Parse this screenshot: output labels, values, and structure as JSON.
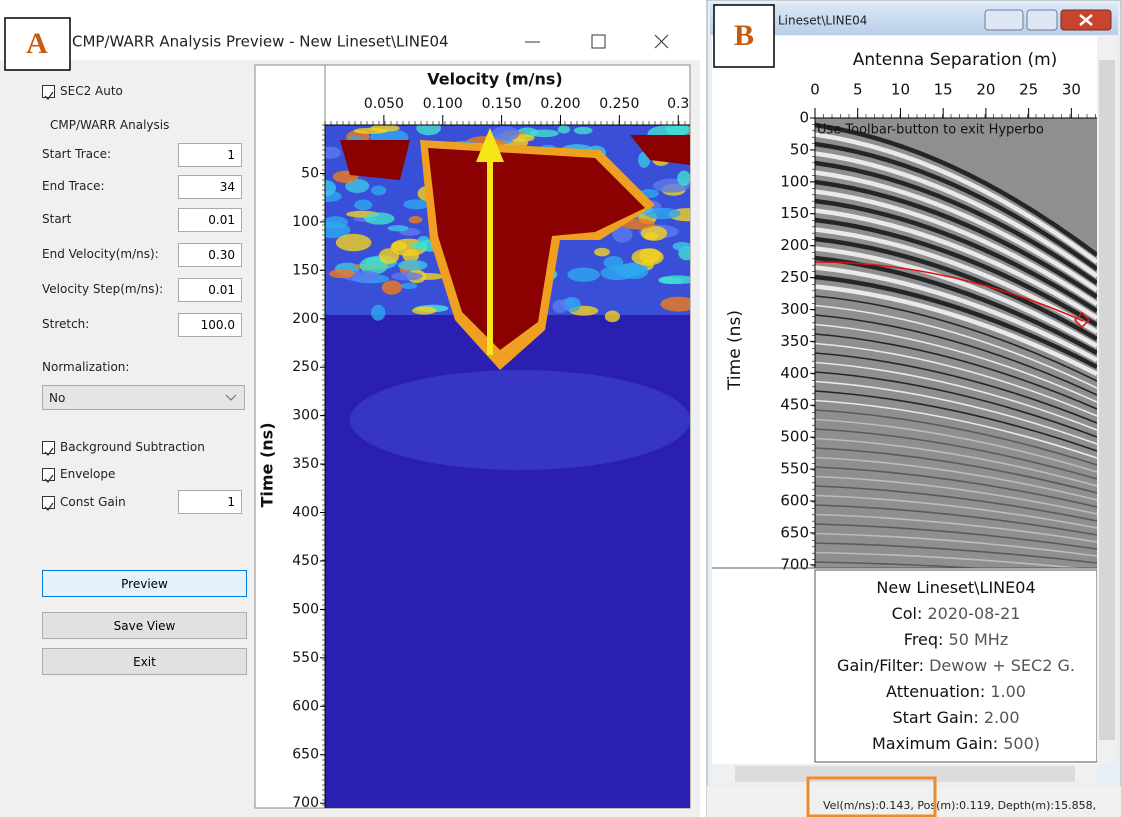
{
  "panel_a": {
    "label": "A",
    "window_title": "CMP/WARR Analysis Preview - New Lineset\\LINE04",
    "sec2_auto": "SEC2 Auto",
    "group_title": "CMP/WARR Analysis",
    "fields": [
      {
        "label": "Start Trace:",
        "value": "1"
      },
      {
        "label": "End Trace:",
        "value": "34"
      },
      {
        "label": "Start",
        "value": "0.01"
      },
      {
        "label": "End Velocity(m/ns):",
        "value": "0.30"
      },
      {
        "label": "Velocity Step(m/ns):",
        "value": "0.01"
      },
      {
        "label": "Stretch:",
        "value": "100.0"
      }
    ],
    "normalization_label": "Normalization:",
    "normalization_value": "No",
    "options": [
      "Background Subtraction",
      "Envelope",
      "Const Gain"
    ],
    "const_gain_value": "1",
    "buttons": [
      "Preview",
      "Save View",
      "Exit"
    ],
    "plot": {
      "x_label": "Velocity (m/ns)",
      "y_label": "Time (ns)",
      "xlim": [
        0,
        0.31
      ],
      "xticks": [
        {
          "value": 0.05,
          "label": "0.050"
        },
        {
          "value": 0.1,
          "label": "0.100"
        },
        {
          "value": 0.15,
          "label": "0.150"
        },
        {
          "value": 0.2,
          "label": "0.200"
        },
        {
          "value": 0.25,
          "label": "0.250"
        },
        0.3
      ],
      "ylim": [
        0,
        705
      ],
      "yticks": [
        50,
        100,
        150,
        200,
        250,
        300,
        350,
        400,
        450,
        500,
        550,
        600,
        650,
        700
      ]
    }
  },
  "panel_b": {
    "label": "B",
    "window_title": "Lineset\\LINE04",
    "plot": {
      "x_label": "Antenna Separation (m)",
      "y_label": "Time (ns)",
      "xlim": [
        0,
        33
      ],
      "xticks": [
        0,
        5,
        10,
        15,
        20,
        25,
        30
      ],
      "ylim": [
        0,
        705
      ],
      "yticks": [
        0,
        50,
        100,
        150,
        200,
        250,
        300,
        350,
        400,
        450,
        500,
        550,
        600,
        650,
        700
      ],
      "overlay": "Use Toolbar-button to exit Hyperbo"
    },
    "info_title": "New Lineset\\LINE04",
    "info": [
      {
        "label": "Col:",
        "value": "2020-08-21"
      },
      {
        "label": "Freq:",
        "value": "50 MHz"
      },
      {
        "label": "Gain/Filter:",
        "value": "Dewow + SEC2 G."
      },
      {
        "label": "Attenuation:",
        "value": "1.00"
      },
      {
        "label": "Start Gain:",
        "value": "2.00"
      },
      {
        "label": "Maximum Gain:",
        "value": "500)"
      }
    ],
    "status": "Vel(m/ns):0.143, Pos(m):0.119, Depth(m):15.858,"
  }
}
